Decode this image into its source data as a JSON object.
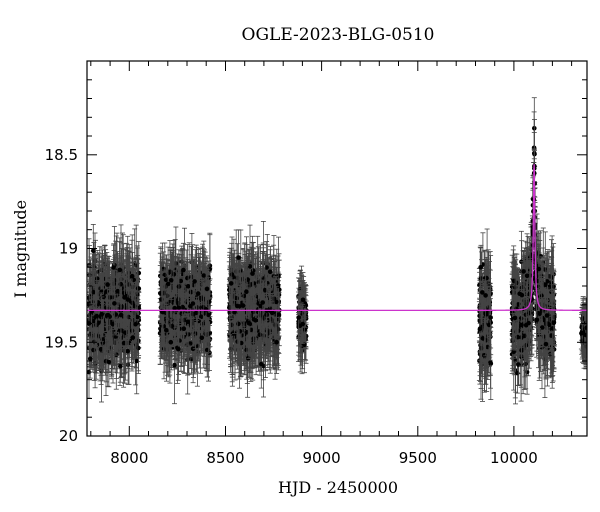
{
  "chart_data": {
    "type": "scatter",
    "title": "OGLE-2023-BLG-0510",
    "xlabel": "HJD - 2450000",
    "ylabel": "I magnitude",
    "xlim": [
      7780,
      10380
    ],
    "ylim": [
      20.0,
      18.0
    ],
    "y_inverted": true,
    "x_ticks": [
      8000,
      8500,
      9000,
      9500,
      10000
    ],
    "x_tick_labels": [
      "8000",
      "8500",
      "9000",
      "9500",
      "10000"
    ],
    "y_ticks": [
      18.5,
      19,
      19.5,
      20
    ],
    "y_tick_labels": [
      "18.5",
      "19",
      "19.5",
      "20"
    ],
    "grid": false,
    "legend": "none",
    "baseline_mag": 19.33,
    "model": {
      "name": "",
      "color": "#cc33cc",
      "t0": 10105,
      "u0_peak_mag": 18.55,
      "tE_days": 12
    },
    "seasons": [
      {
        "start": 7790,
        "end": 8050,
        "mean_mag": 19.33,
        "spread": 0.22,
        "err": 0.16
      },
      {
        "start": 8160,
        "end": 8420,
        "mean_mag": 19.33,
        "spread": 0.2,
        "err": 0.15
      },
      {
        "start": 8520,
        "end": 8780,
        "mean_mag": 19.33,
        "spread": 0.21,
        "err": 0.16
      },
      {
        "start": 8880,
        "end": 8920,
        "mean_mag": 19.36,
        "spread": 0.15,
        "err": 0.12
      },
      {
        "start": 9820,
        "end": 9880,
        "mean_mag": 19.38,
        "spread": 0.24,
        "err": 0.17
      },
      {
        "start": 9990,
        "end": 10210,
        "mean_mag": 19.36,
        "spread": 0.23,
        "err": 0.16
      },
      {
        "start": 10350,
        "end": 10380,
        "mean_mag": 19.45,
        "spread": 0.08,
        "err": 0.1
      }
    ],
    "colors": {
      "points": "#000000",
      "errorbars": "#444444",
      "model": "#cc33cc"
    }
  }
}
